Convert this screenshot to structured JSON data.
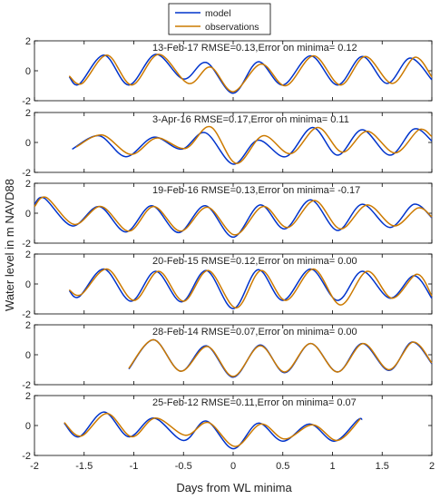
{
  "chart_data": [
    {
      "type": "line",
      "annotation": "13-Feb-17   RMSE=0.13,Error on minima= 0.12",
      "x_range": [
        -1.65,
        2.0
      ],
      "series": [
        {
          "name": "model",
          "color": "#0033cc",
          "points": [
            [
              -1.65,
              -0.4
            ],
            [
              -1.55,
              -0.9
            ],
            [
              -1.3,
              1.05
            ],
            [
              -1.05,
              -0.95
            ],
            [
              -0.78,
              1.1
            ],
            [
              -0.5,
              -0.55
            ],
            [
              -0.27,
              0.55
            ],
            [
              0.0,
              -1.5
            ],
            [
              0.25,
              0.6
            ],
            [
              0.5,
              -0.95
            ],
            [
              0.78,
              1.0
            ],
            [
              1.05,
              -0.95
            ],
            [
              1.3,
              0.95
            ],
            [
              1.55,
              -0.85
            ],
            [
              1.78,
              0.85
            ],
            [
              2.0,
              -0.6
            ]
          ]
        },
        {
          "name": "observations",
          "color": "#cc7a00",
          "points": [
            [
              -1.65,
              -0.35
            ],
            [
              -1.52,
              -0.85
            ],
            [
              -1.27,
              1.05
            ],
            [
              -1.02,
              -0.95
            ],
            [
              -0.75,
              1.1
            ],
            [
              -0.45,
              -0.85
            ],
            [
              -0.23,
              0.25
            ],
            [
              0.0,
              -1.4
            ],
            [
              0.28,
              0.45
            ],
            [
              0.53,
              -1.0
            ],
            [
              0.81,
              1.0
            ],
            [
              1.08,
              -0.95
            ],
            [
              1.33,
              0.95
            ],
            [
              1.6,
              -0.85
            ],
            [
              1.83,
              0.9
            ],
            [
              2.0,
              -0.4
            ]
          ]
        }
      ]
    },
    {
      "type": "line",
      "annotation": "3-Apr-16   RMSE=0.17,Error on minima= 0.11",
      "x_range": [
        -1.65,
        2.0
      ],
      "series": [
        {
          "name": "model",
          "color": "#0033cc",
          "points": [
            [
              -1.62,
              -0.45
            ],
            [
              -1.35,
              0.45
            ],
            [
              -1.08,
              -0.95
            ],
            [
              -0.8,
              0.35
            ],
            [
              -0.52,
              -0.45
            ],
            [
              -0.28,
              0.65
            ],
            [
              0.0,
              -1.45
            ],
            [
              0.25,
              0.15
            ],
            [
              0.53,
              -0.95
            ],
            [
              0.8,
              1.0
            ],
            [
              1.05,
              -0.85
            ],
            [
              1.3,
              0.85
            ],
            [
              1.58,
              -0.85
            ],
            [
              1.82,
              0.9
            ],
            [
              2.0,
              0.1
            ]
          ]
        },
        {
          "name": "observations",
          "color": "#cc7a00",
          "points": [
            [
              -1.58,
              -0.3
            ],
            [
              -1.32,
              0.5
            ],
            [
              -1.03,
              -0.8
            ],
            [
              -0.77,
              0.3
            ],
            [
              -0.48,
              -0.4
            ],
            [
              -0.23,
              1.05
            ],
            [
              0.03,
              -1.4
            ],
            [
              0.3,
              0.45
            ],
            [
              0.58,
              -0.75
            ],
            [
              0.85,
              1.0
            ],
            [
              1.1,
              -0.65
            ],
            [
              1.35,
              0.75
            ],
            [
              1.63,
              -0.7
            ],
            [
              1.87,
              0.85
            ],
            [
              2.0,
              0.4
            ]
          ]
        }
      ]
    },
    {
      "type": "line",
      "annotation": "19-Feb-16   RMSE=0.13,Error on minima= -0.17",
      "x_range": [
        -2.0,
        2.0
      ],
      "series": [
        {
          "name": "model",
          "color": "#0033cc",
          "points": [
            [
              -2.0,
              0.6
            ],
            [
              -1.9,
              1.0
            ],
            [
              -1.62,
              -0.85
            ],
            [
              -1.35,
              0.45
            ],
            [
              -1.08,
              -1.25
            ],
            [
              -0.82,
              0.5
            ],
            [
              -0.55,
              -1.3
            ],
            [
              -0.28,
              0.5
            ],
            [
              0.0,
              -1.6
            ],
            [
              0.27,
              0.55
            ],
            [
              0.52,
              -1.05
            ],
            [
              0.78,
              0.9
            ],
            [
              1.05,
              -1.15
            ],
            [
              1.3,
              0.6
            ],
            [
              1.58,
              -0.95
            ],
            [
              1.82,
              0.6
            ],
            [
              2.0,
              -0.3
            ]
          ]
        },
        {
          "name": "observations",
          "color": "#cc7a00",
          "points": [
            [
              -2.0,
              0.45
            ],
            [
              -1.88,
              1.05
            ],
            [
              -1.6,
              -0.75
            ],
            [
              -1.33,
              0.45
            ],
            [
              -1.05,
              -1.2
            ],
            [
              -0.8,
              0.45
            ],
            [
              -0.53,
              -1.2
            ],
            [
              -0.26,
              0.4
            ],
            [
              0.02,
              -1.45
            ],
            [
              0.3,
              0.45
            ],
            [
              0.55,
              -0.95
            ],
            [
              0.82,
              0.85
            ],
            [
              1.08,
              -1.05
            ],
            [
              1.35,
              0.55
            ],
            [
              1.62,
              -0.85
            ],
            [
              1.86,
              0.35
            ],
            [
              2.0,
              -0.25
            ]
          ]
        }
      ]
    },
    {
      "type": "line",
      "annotation": "20-Feb-15   RMSE=0.12,Error on minima= 0.00",
      "x_range": [
        -1.65,
        2.0
      ],
      "series": [
        {
          "name": "model",
          "color": "#0033cc",
          "points": [
            [
              -1.65,
              -0.45
            ],
            [
              -1.55,
              -0.85
            ],
            [
              -1.3,
              1.0
            ],
            [
              -1.03,
              -1.15
            ],
            [
              -0.78,
              0.85
            ],
            [
              -0.52,
              -1.2
            ],
            [
              -0.27,
              0.9
            ],
            [
              0.0,
              -1.65
            ],
            [
              0.25,
              0.95
            ],
            [
              0.5,
              -1.1
            ],
            [
              0.78,
              1.0
            ],
            [
              1.05,
              -1.1
            ],
            [
              1.3,
              0.85
            ],
            [
              1.58,
              -0.95
            ],
            [
              1.82,
              0.55
            ],
            [
              2.0,
              -0.95
            ]
          ]
        },
        {
          "name": "observations",
          "color": "#cc7a00",
          "points": [
            [
              -1.65,
              -0.4
            ],
            [
              -1.53,
              -0.7
            ],
            [
              -1.27,
              1.0
            ],
            [
              -1.0,
              -1.1
            ],
            [
              -0.75,
              0.85
            ],
            [
              -0.5,
              -1.15
            ],
            [
              -0.25,
              0.9
            ],
            [
              0.03,
              -1.6
            ],
            [
              0.28,
              0.9
            ],
            [
              0.53,
              -1.1
            ],
            [
              0.81,
              1.0
            ],
            [
              1.08,
              -1.4
            ],
            [
              1.35,
              0.85
            ],
            [
              1.6,
              -0.95
            ],
            [
              1.85,
              0.65
            ],
            [
              2.0,
              -0.8
            ]
          ]
        }
      ]
    },
    {
      "type": "line",
      "annotation": "28-Feb-14   RMSE=0.07,Error on minima= 0.00",
      "x_range": [
        -1.05,
        2.0
      ],
      "series": [
        {
          "name": "model",
          "color": "#0033cc",
          "points": [
            [
              -1.05,
              -0.95
            ],
            [
              -0.8,
              1.0
            ],
            [
              -0.53,
              -1.1
            ],
            [
              -0.27,
              0.6
            ],
            [
              0.0,
              -1.5
            ],
            [
              0.27,
              0.65
            ],
            [
              0.52,
              -1.2
            ],
            [
              0.78,
              0.75
            ],
            [
              1.05,
              -1.15
            ],
            [
              1.3,
              0.75
            ],
            [
              1.57,
              -1.05
            ],
            [
              1.8,
              0.85
            ],
            [
              2.0,
              -0.6
            ]
          ]
        },
        {
          "name": "observations",
          "color": "#cc7a00",
          "points": [
            [
              -1.05,
              -0.9
            ],
            [
              -0.8,
              1.0
            ],
            [
              -0.53,
              -1.1
            ],
            [
              -0.26,
              0.55
            ],
            [
              0.0,
              -1.45
            ],
            [
              0.27,
              0.6
            ],
            [
              0.52,
              -1.15
            ],
            [
              0.78,
              0.75
            ],
            [
              1.05,
              -1.15
            ],
            [
              1.31,
              0.75
            ],
            [
              1.57,
              -1.0
            ],
            [
              1.81,
              0.85
            ],
            [
              2.0,
              -0.55
            ]
          ]
        }
      ]
    },
    {
      "type": "line",
      "annotation": "25-Feb-12   RMSE=0.11,Error on minima= 0.07",
      "x_range": [
        -1.7,
        1.3
      ],
      "series": [
        {
          "name": "model",
          "color": "#0033cc",
          "points": [
            [
              -1.7,
              0.15
            ],
            [
              -1.55,
              -0.75
            ],
            [
              -1.3,
              0.9
            ],
            [
              -1.05,
              -0.75
            ],
            [
              -0.8,
              0.5
            ],
            [
              -0.5,
              -1.0
            ],
            [
              -0.27,
              0.3
            ],
            [
              0.0,
              -1.55
            ],
            [
              0.25,
              0.15
            ],
            [
              0.5,
              -1.05
            ],
            [
              0.77,
              0.1
            ],
            [
              1.02,
              -1.05
            ],
            [
              1.25,
              0.35
            ],
            [
              1.3,
              0.4
            ]
          ]
        },
        {
          "name": "observations",
          "color": "#cc7a00",
          "points": [
            [
              -1.7,
              0.2
            ],
            [
              -1.53,
              -0.7
            ],
            [
              -1.27,
              0.8
            ],
            [
              -1.02,
              -0.75
            ],
            [
              -0.78,
              0.5
            ],
            [
              -0.48,
              -0.65
            ],
            [
              -0.25,
              0.2
            ],
            [
              0.02,
              -1.4
            ],
            [
              0.28,
              0.1
            ],
            [
              0.52,
              -0.9
            ],
            [
              0.8,
              0.05
            ],
            [
              1.05,
              -1.0
            ],
            [
              1.28,
              0.45
            ]
          ]
        }
      ]
    }
  ],
  "axes": {
    "ylabel": "Water level in m NAVD88",
    "xlabel": "Days from WL minima",
    "xlim": [
      -2,
      2
    ],
    "ylim": [
      -2,
      2
    ],
    "xticks": [
      "-2",
      "-1.5",
      "-1",
      "-0.5",
      "0",
      "0.5",
      "1",
      "1.5",
      "2"
    ],
    "yticks": [
      "-2",
      "0",
      "2"
    ]
  },
  "legend": {
    "placement": "top-center",
    "items": [
      {
        "label": "model",
        "color": "#0033cc"
      },
      {
        "label": "observations",
        "color": "#cc7a00"
      }
    ]
  }
}
